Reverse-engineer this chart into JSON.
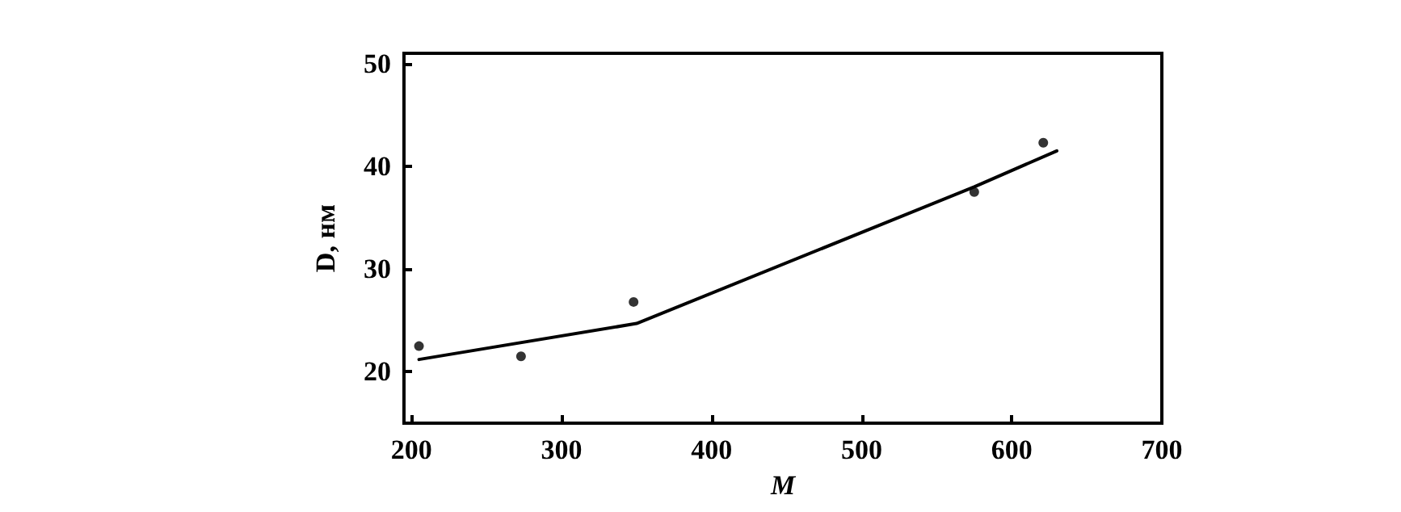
{
  "chart_data": {
    "type": "scatter",
    "xlabel": "M",
    "ylabel": "D, нм",
    "xlim": [
      195,
      700
    ],
    "xticks": [
      200,
      300,
      400,
      500,
      600,
      700
    ],
    "ylim": [
      15,
      51
    ],
    "yticks": [
      20,
      30,
      40,
      50
    ],
    "grid": false,
    "series": [
      {
        "color": "#000000",
        "marker": "circle",
        "x": [
          205,
          273,
          348,
          575,
          621
        ],
        "values": [
          22.5,
          21.5,
          26.8,
          37.5,
          42.3
        ]
      },
      {
        "type": "line",
        "color": "#000000",
        "marker": "none",
        "line_style": "solid",
        "x": [
          205,
          350,
          575,
          630
        ],
        "values": [
          21.2,
          24.7,
          38,
          41.5
        ]
      }
    ]
  }
}
